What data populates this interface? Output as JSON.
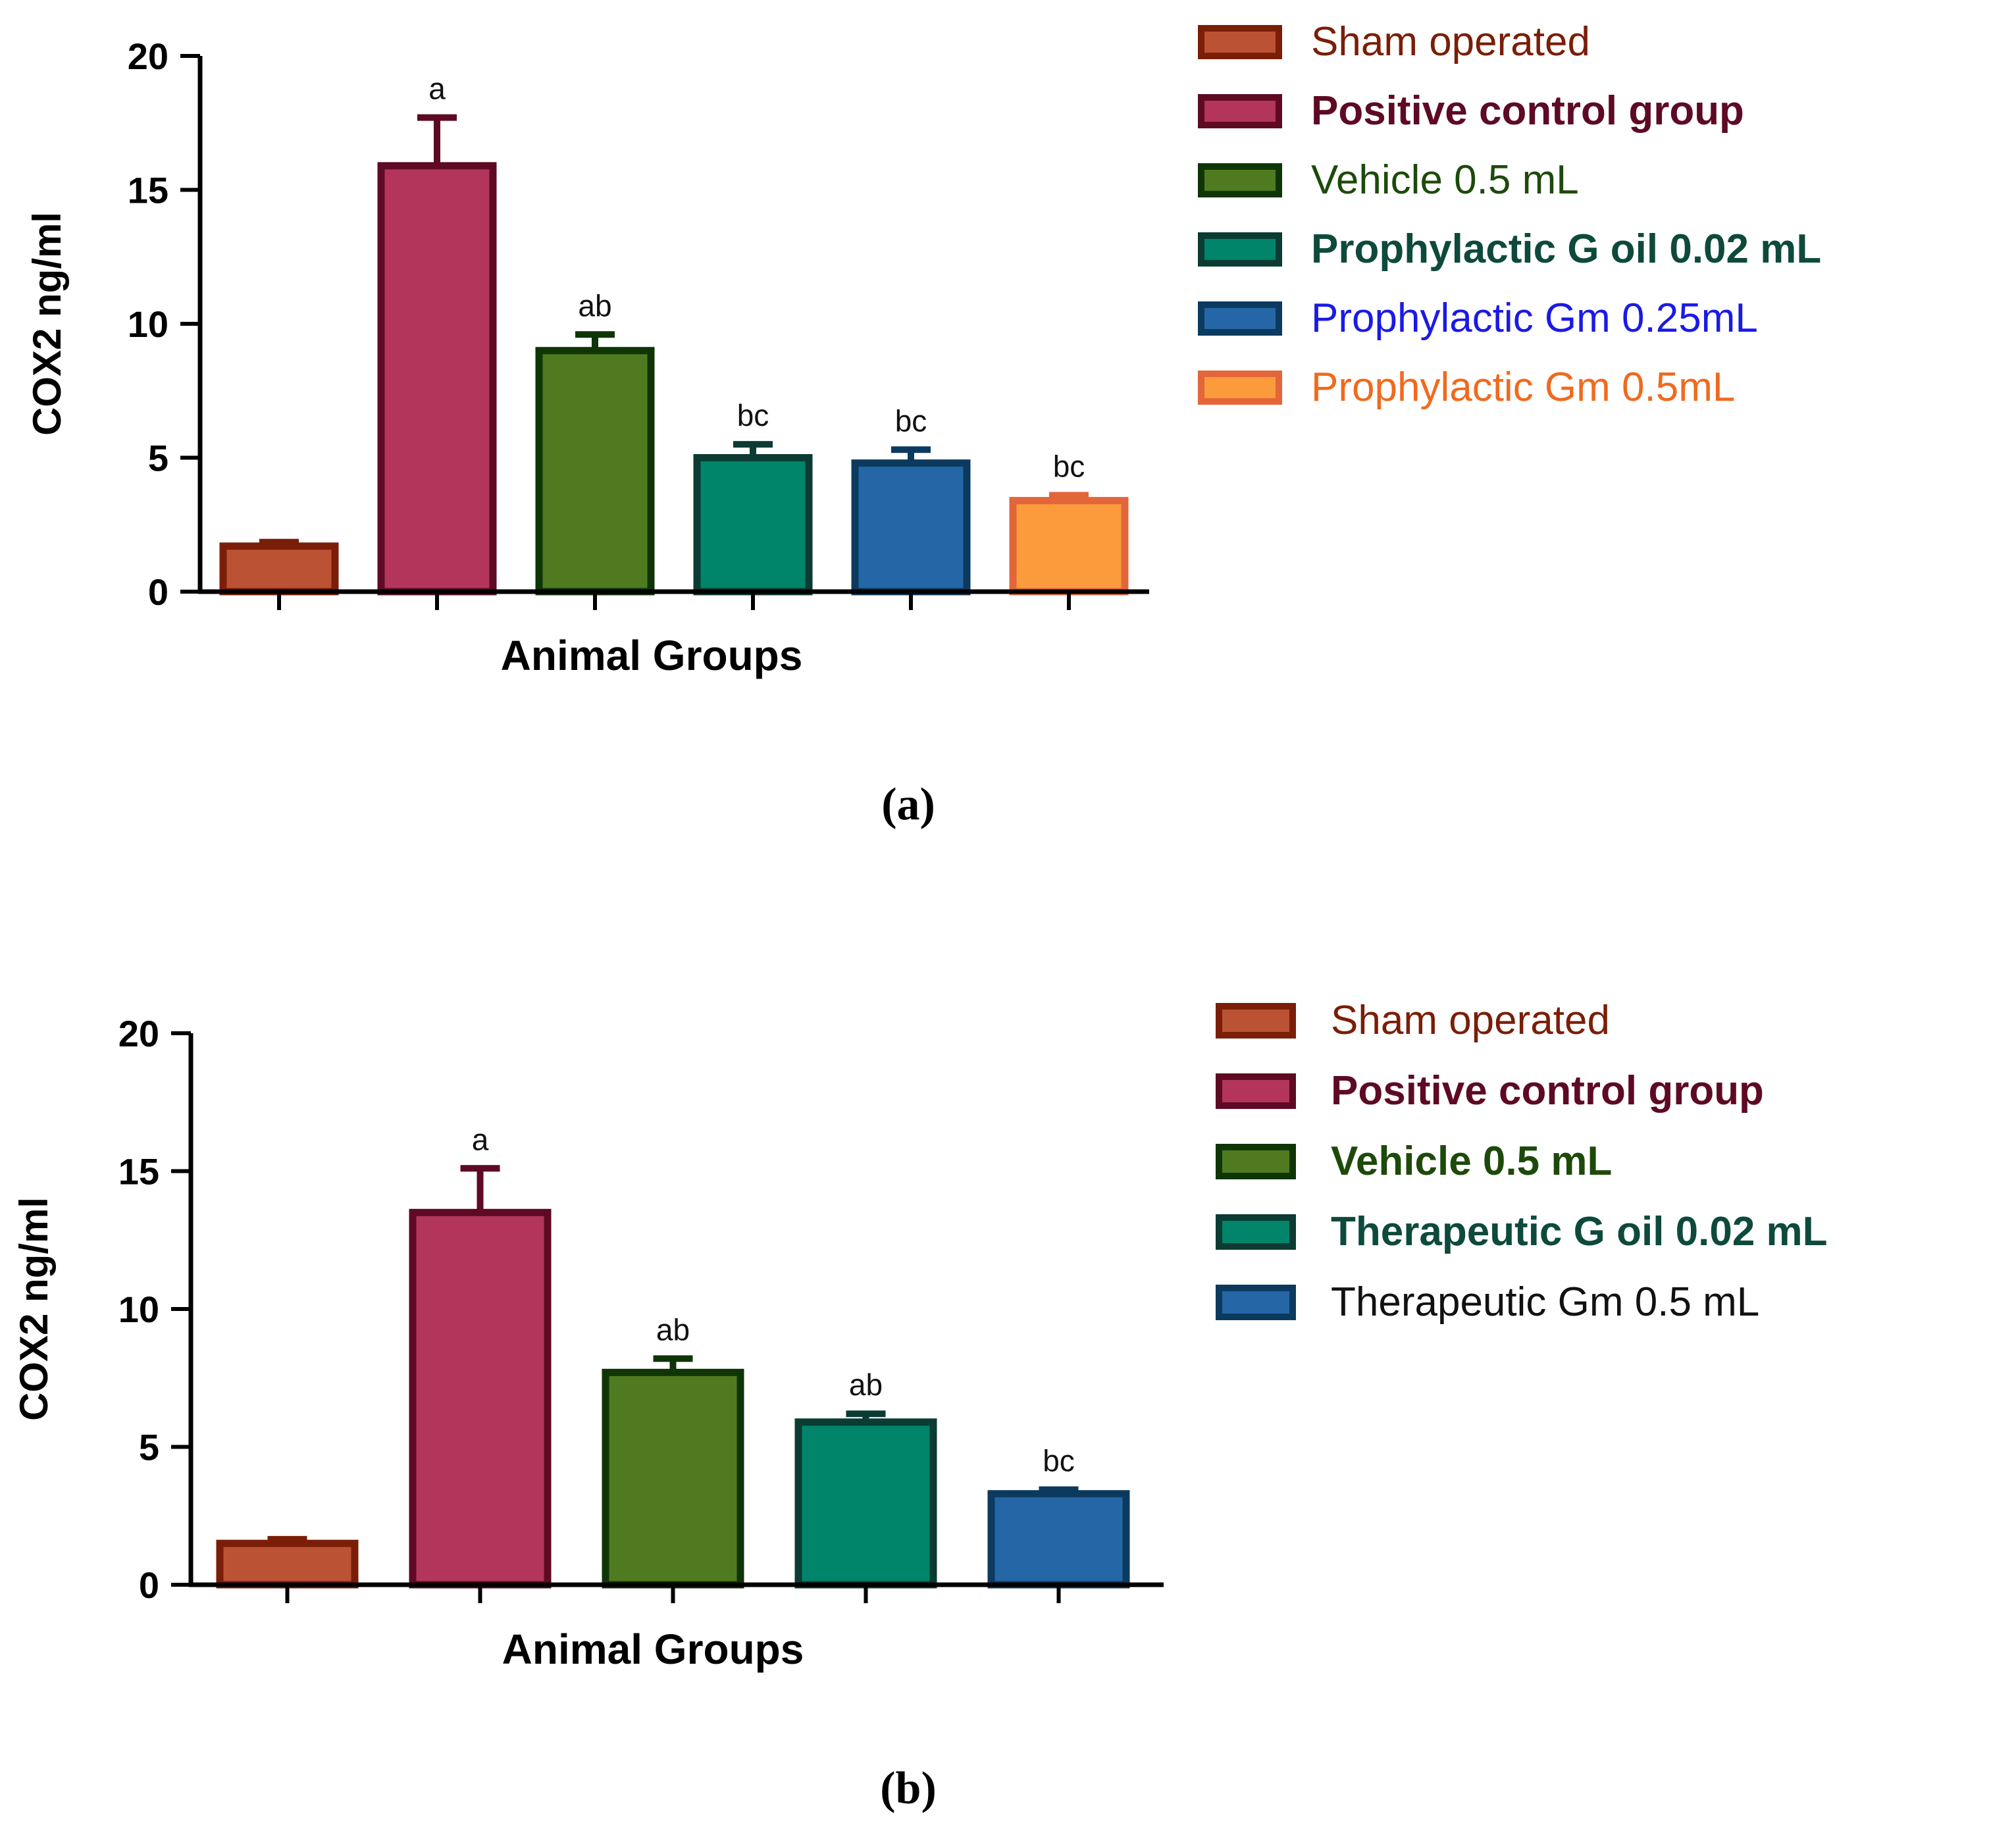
{
  "chart_data": [
    {
      "panel_label": "(a)",
      "type": "bar",
      "xlabel": "Animal Groups",
      "ylabel": "COX2 ng/ml",
      "ylim": [
        0,
        20
      ],
      "yticks": [
        0,
        5,
        10,
        15,
        20
      ],
      "grid": false,
      "legend_position": "right",
      "bars": [
        {
          "name": "Sham operated",
          "value": 1.7,
          "error": 0.15,
          "sig": "",
          "fill": "#BC5234",
          "edge": "#7A1E08",
          "label_color": "#7A1E08",
          "bold": false
        },
        {
          "name": "Positive control group",
          "value": 15.9,
          "error": 1.8,
          "sig": "a",
          "fill": "#B3355C",
          "edge": "#5E0A24",
          "label_color": "#5E0A24",
          "bold": true
        },
        {
          "name": "Vehicle 0.5 mL",
          "value": 9.0,
          "error": 0.6,
          "sig": "ab",
          "fill": "#4F7A1F",
          "edge": "#0F3507",
          "label_color": "#1D4A0A",
          "bold": false
        },
        {
          "name": "Prophylactic G oil 0.02 mL",
          "value": 5.0,
          "error": 0.5,
          "sig": "bc",
          "fill": "#00846A",
          "edge": "#0B3B33",
          "label_color": "#0E4A3C",
          "bold": true
        },
        {
          "name": "Prophylactic Gm 0.25mL",
          "value": 4.8,
          "error": 0.5,
          "sig": "bc",
          "fill": "#2466A6",
          "edge": "#0C3A5E",
          "label_color": "#1A1AE6",
          "bold": false
        },
        {
          "name": "Prophylactic Gm 0.5mL",
          "value": 3.4,
          "error": 0.2,
          "sig": "bc",
          "fill": "#FB9B3C",
          "edge": "#E3663A",
          "label_color": "#F06A1E",
          "bold": false
        }
      ]
    },
    {
      "panel_label": "(b)",
      "type": "bar",
      "xlabel": "Animal Groups",
      "ylabel": "COX2 ng/ml",
      "ylim": [
        0,
        20
      ],
      "yticks": [
        0,
        5,
        10,
        15,
        20
      ],
      "grid": false,
      "legend_position": "right",
      "bars": [
        {
          "name": "Sham operated",
          "value": 1.5,
          "error": 0.15,
          "sig": "",
          "fill": "#BC5234",
          "edge": "#7A1E08",
          "label_color": "#7A1E08",
          "bold": false
        },
        {
          "name": "Positive control group",
          "value": 13.5,
          "error": 1.6,
          "sig": "a",
          "fill": "#B3355C",
          "edge": "#5E0A24",
          "label_color": "#5E0A24",
          "bold": true
        },
        {
          "name": "Vehicle 0.5 mL",
          "value": 7.7,
          "error": 0.5,
          "sig": "ab",
          "fill": "#4F7A1F",
          "edge": "#0F3507",
          "label_color": "#1D4A0A",
          "bold": true
        },
        {
          "name": "Therapeutic G oil 0.02 mL",
          "value": 5.9,
          "error": 0.3,
          "sig": "ab",
          "fill": "#00846A",
          "edge": "#0B3B33",
          "label_color": "#0E4A3C",
          "bold": true
        },
        {
          "name": "Therapeutic Gm 0.5 mL",
          "value": 3.3,
          "error": 0.15,
          "sig": "bc",
          "fill": "#2466A6",
          "edge": "#0C3A5E",
          "label_color": "#111111",
          "bold": false
        }
      ]
    }
  ]
}
